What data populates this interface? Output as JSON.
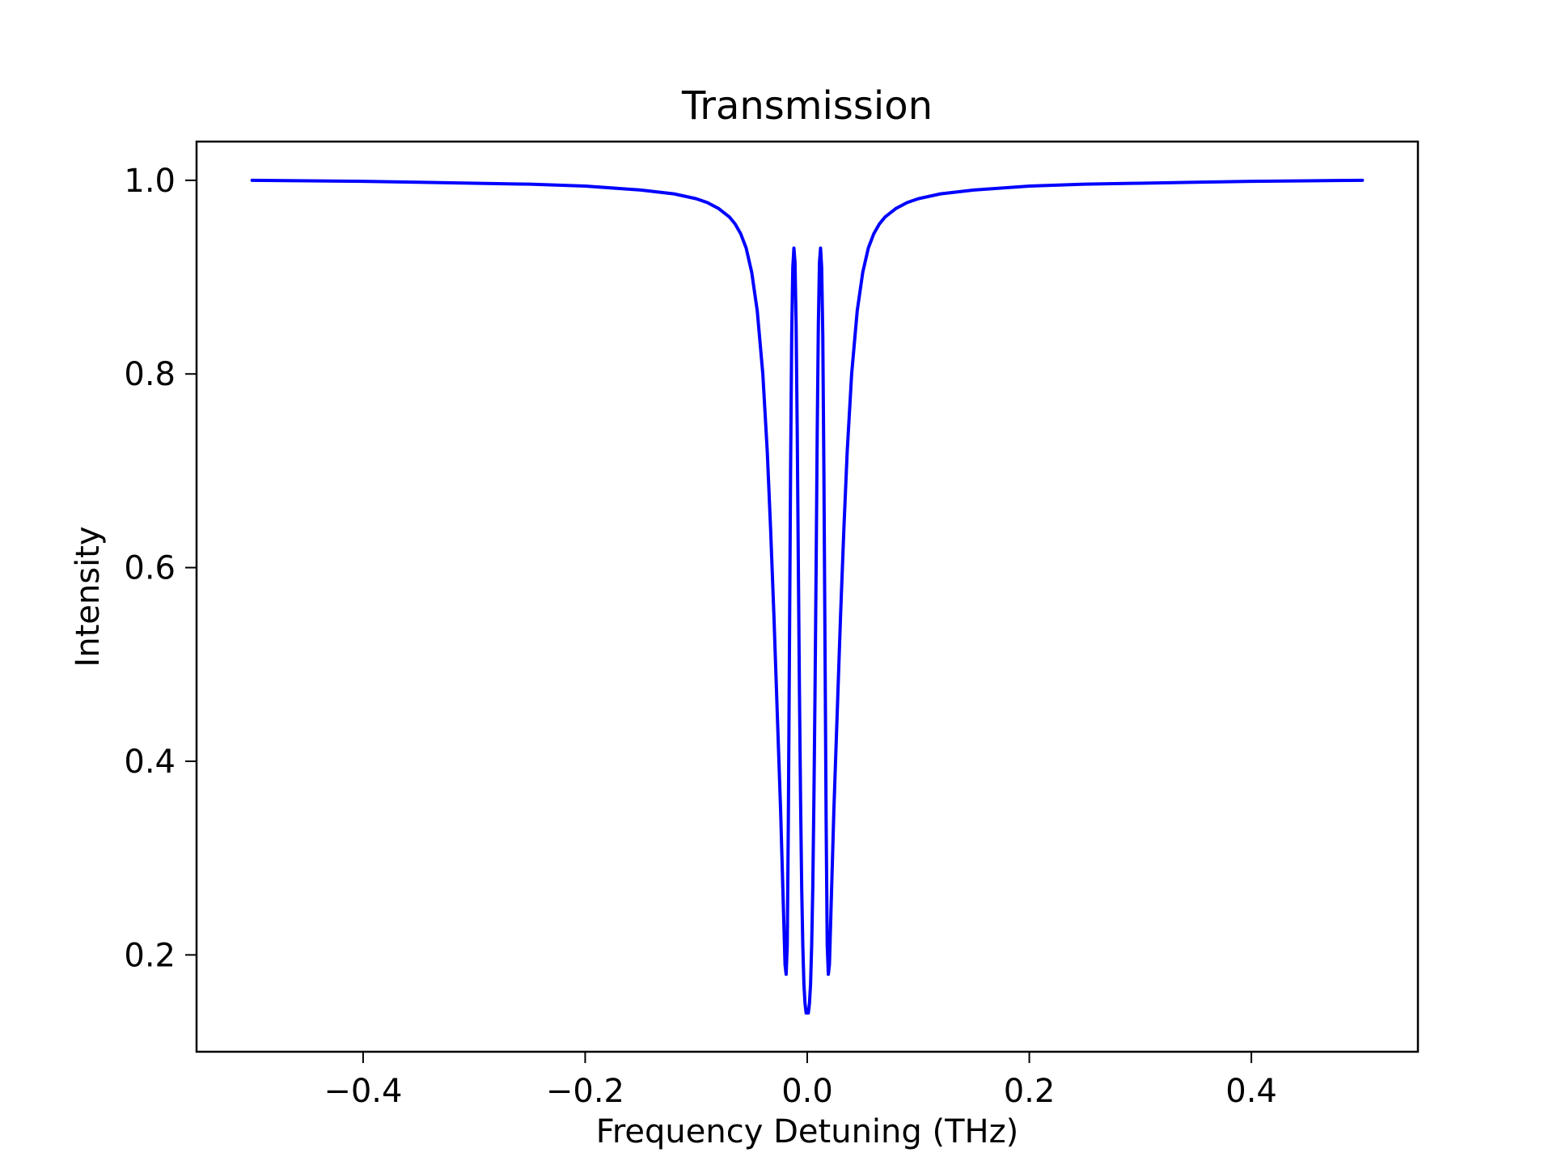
{
  "chart_data": {
    "type": "line",
    "title": "Transmission",
    "xlabel": "Frequency Detuning (THz)",
    "ylabel": "Intensity",
    "xlim": [
      -0.55,
      0.55
    ],
    "ylim": [
      0.1,
      1.04
    ],
    "xticks": [
      -0.4,
      -0.2,
      0.0,
      0.2,
      0.4
    ],
    "xtick_labels": [
      "−0.4",
      "−0.2",
      "0.0",
      "0.2",
      "0.4"
    ],
    "yticks": [
      0.2,
      0.4,
      0.6,
      0.8,
      1.0
    ],
    "ytick_labels": [
      "0.2",
      "0.4",
      "0.6",
      "0.8",
      "1.0"
    ],
    "grid": false,
    "series": [
      {
        "color": "#0000ff",
        "x": [
          -0.5,
          -0.45,
          -0.4,
          -0.35,
          -0.3,
          -0.25,
          -0.2,
          -0.15,
          -0.12,
          -0.1,
          -0.09,
          -0.08,
          -0.07,
          -0.065,
          -0.06,
          -0.055,
          -0.05,
          -0.045,
          -0.04,
          -0.036,
          -0.033,
          -0.03,
          -0.027,
          -0.024,
          -0.022,
          -0.02,
          -0.019,
          -0.018,
          -0.017,
          -0.016,
          -0.015,
          -0.014,
          -0.013,
          -0.012,
          -0.011,
          -0.01,
          -0.009,
          -0.008,
          -0.007,
          -0.006,
          -0.005,
          -0.004,
          -0.003,
          -0.002,
          -0.001,
          0.0,
          0.001,
          0.002,
          0.003,
          0.004,
          0.005,
          0.006,
          0.007,
          0.008,
          0.009,
          0.01,
          0.011,
          0.012,
          0.013,
          0.014,
          0.015,
          0.016,
          0.017,
          0.018,
          0.019,
          0.02,
          0.022,
          0.024,
          0.027,
          0.03,
          0.033,
          0.036,
          0.04,
          0.045,
          0.05,
          0.055,
          0.06,
          0.065,
          0.07,
          0.08,
          0.09,
          0.1,
          0.12,
          0.15,
          0.2,
          0.25,
          0.3,
          0.35,
          0.4,
          0.45,
          0.5
        ],
        "y": [
          1.0,
          0.9995,
          0.999,
          0.998,
          0.997,
          0.996,
          0.994,
          0.99,
          0.986,
          0.981,
          0.977,
          0.971,
          0.962,
          0.955,
          0.945,
          0.93,
          0.905,
          0.865,
          0.8,
          0.72,
          0.64,
          0.55,
          0.45,
          0.35,
          0.27,
          0.19,
          0.18,
          0.21,
          0.34,
          0.52,
          0.7,
          0.84,
          0.91,
          0.93,
          0.915,
          0.85,
          0.74,
          0.6,
          0.47,
          0.36,
          0.27,
          0.21,
          0.17,
          0.15,
          0.14,
          0.14,
          0.14,
          0.15,
          0.17,
          0.21,
          0.27,
          0.36,
          0.47,
          0.6,
          0.74,
          0.85,
          0.915,
          0.93,
          0.91,
          0.84,
          0.7,
          0.52,
          0.34,
          0.21,
          0.18,
          0.19,
          0.27,
          0.35,
          0.45,
          0.55,
          0.64,
          0.72,
          0.8,
          0.865,
          0.905,
          0.93,
          0.945,
          0.955,
          0.962,
          0.971,
          0.977,
          0.981,
          0.986,
          0.99,
          0.994,
          0.996,
          0.997,
          0.998,
          0.999,
          0.9995,
          1.0
        ]
      }
    ]
  }
}
